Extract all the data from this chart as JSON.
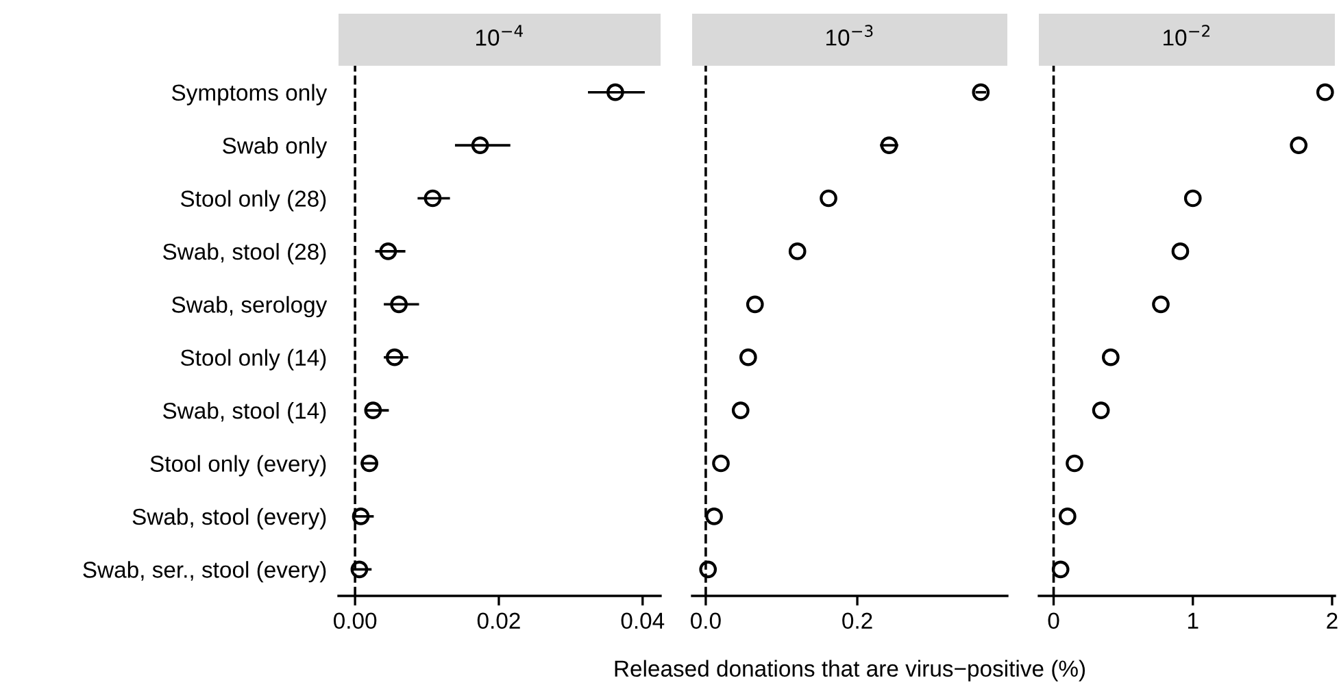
{
  "chart_data": [
    {
      "type": "scatter",
      "orientation": "horizontal",
      "title": "10$^{−4}$",
      "categories": [
        "Symptoms only",
        "Swab only",
        "Stool only (28)",
        "Swab, stool (28)",
        "Swab, serology",
        "Stool only (14)",
        "Swab, stool (14)",
        "Stool only (every)",
        "Swab, stool (every)",
        "Swab, ser., stool (every)"
      ],
      "series": [
        {
          "color": "#000000",
          "values": [
            0.0362,
            0.0174,
            0.0108,
            0.0046,
            0.0061,
            0.0055,
            0.0025,
            0.002,
            0.0008,
            0.0006
          ],
          "errors": [
            [
              0.0324,
              0.0403
            ],
            [
              0.0139,
              0.0216
            ],
            [
              0.0087,
              0.0132
            ],
            [
              0.0028,
              0.007
            ],
            [
              0.004,
              0.0089
            ],
            [
              0.004,
              0.0074
            ],
            [
              0.0014,
              0.0047
            ],
            [
              0.0008,
              0.0032
            ],
            [
              -0.0001,
              0.0026
            ],
            [
              -0.0003,
              0.0023
            ]
          ]
        }
      ],
      "xlim": [
        -0.0023,
        0.0425
      ],
      "xticks": [
        {
          "value": 0,
          "label": "0.00"
        },
        0.02,
        0.04
      ],
      "marker": "circle",
      "grid": false,
      "ref_lines": [
        {
          "axis": "x",
          "value": 0,
          "line_style": "dashed",
          "color": "#000000"
        }
      ]
    },
    {
      "type": "scatter",
      "orientation": "horizontal",
      "title": "10$^{−3}$",
      "xlabel": "Released donations that are virus−positive (%)",
      "categories": [
        null,
        null,
        null,
        null,
        null,
        null,
        null,
        null,
        null,
        null
      ],
      "series": [
        {
          "color": "#000000",
          "values": [
            0.363,
            0.242,
            0.162,
            0.121,
            0.065,
            0.056,
            0.046,
            0.02,
            0.011,
            0.003
          ],
          "errors": [
            0.007,
            0.012,
            null,
            null,
            null,
            null,
            null,
            null,
            null,
            null
          ]
        }
      ],
      "xlim": [
        -0.018,
        0.398
      ],
      "xticks": [
        {
          "value": 0,
          "label": "0.0"
        },
        0.2
      ],
      "marker": "circle",
      "grid": false,
      "tick_labels": "x",
      "ref_lines": [
        {
          "axis": "x",
          "value": 0,
          "line_style": "dashed",
          "color": "#000000"
        }
      ]
    },
    {
      "type": "scatter",
      "orientation": "horizontal",
      "title": "10$^{−2}$",
      "categories": [
        null,
        null,
        null,
        null,
        null,
        null,
        null,
        null,
        null,
        null
      ],
      "series": [
        {
          "color": "#000000",
          "values": [
            1.95,
            1.76,
            1.0,
            0.91,
            0.77,
            0.41,
            0.34,
            0.15,
            0.1,
            0.05
          ]
        }
      ],
      "xlim": [
        -0.106,
        2.02
      ],
      "xticks": [
        0,
        1,
        2
      ],
      "marker": "circle",
      "grid": false,
      "tick_labels": "x",
      "ref_lines": [
        {
          "axis": "x",
          "value": 0,
          "line_style": "dashed",
          "color": "#000000"
        }
      ]
    }
  ]
}
